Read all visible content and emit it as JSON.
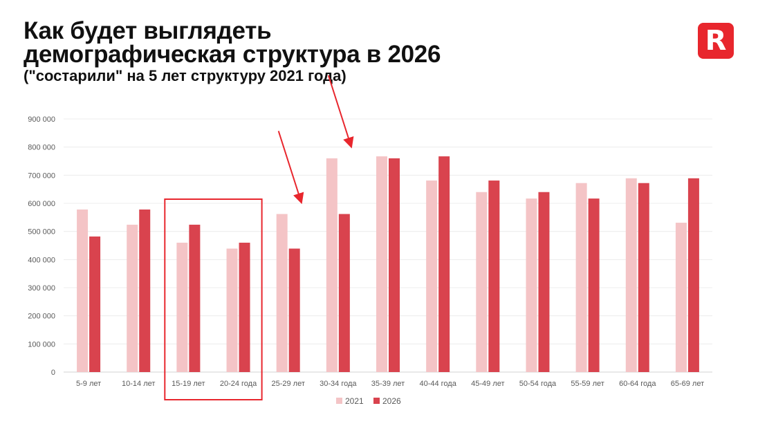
{
  "header": {
    "title_line1": "Как будет выглядеть",
    "title_line2": "демографическая структура в 2026",
    "subtitle": "(\"состарили\" на 5 лет структуру 2021 года)",
    "logo_letter": "R"
  },
  "chart_data": {
    "type": "bar",
    "categories": [
      "5-9 лет",
      "10-14 лет",
      "15-19 лет",
      "20-24 года",
      "25-29 лет",
      "30-34 года",
      "35-39 лет",
      "40-44 года",
      "45-49 лет",
      "50-54 года",
      "55-59 лет",
      "60-64 года",
      "65-69 лет"
    ],
    "series": [
      {
        "name": "2021",
        "color": "#f4c4c6",
        "values": [
          578000,
          524000,
          460000,
          439000,
          562000,
          760000,
          767000,
          681000,
          640000,
          617000,
          672000,
          689000,
          531000
        ]
      },
      {
        "name": "2026",
        "color": "#d9434e",
        "values": [
          482000,
          578000,
          524000,
          460000,
          439000,
          562000,
          760000,
          767000,
          681000,
          640000,
          617000,
          672000,
          689000
        ]
      }
    ],
    "ylim": [
      0,
      900000
    ],
    "yticks": [
      0,
      100000,
      200000,
      300000,
      400000,
      500000,
      600000,
      700000,
      800000,
      900000
    ],
    "ytick_labels": [
      "0",
      "100 000",
      "200 000",
      "300 000",
      "400 000",
      "500 000",
      "600 000",
      "700 000",
      "800 000",
      "900 000"
    ],
    "grid": true,
    "legend_position": "bottom-center",
    "annotations": [
      {
        "type": "highlight-box",
        "categories": [
          "15-19 лет",
          "20-24 года"
        ],
        "color": "#e8262d"
      },
      {
        "type": "arrow",
        "target": "25-29 лет",
        "color": "#e8262d"
      },
      {
        "type": "arrow",
        "target": "30-34 года",
        "color": "#e8262d"
      }
    ]
  }
}
